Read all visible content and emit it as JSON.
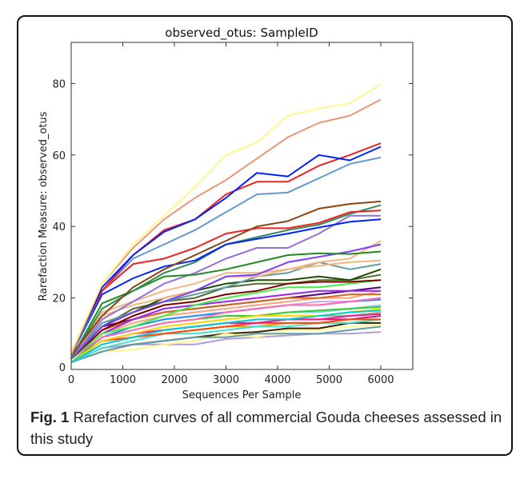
{
  "figure": {
    "label": "Fig. 1",
    "caption": "Rarefaction curves of all commercial Gouda cheeses assessed in this study"
  },
  "chart_data": {
    "type": "line",
    "title": "observed_otus: SampleID",
    "xlabel": "Sequences Per Sample",
    "ylabel": "Rarefaction Measure: observed_otus",
    "xlim": [
      0,
      6620
    ],
    "ylim": [
      0,
      91.5
    ],
    "xticks": [
      0,
      1000,
      2000,
      3000,
      4000,
      5000,
      6000
    ],
    "yticks": [
      0,
      20,
      40,
      60,
      80
    ],
    "grid": false,
    "legend": "none",
    "x": [
      0,
      600,
      1200,
      1800,
      2400,
      3000,
      3600,
      4200,
      4800,
      5400,
      6000
    ],
    "series": [
      {
        "color": "#fff68f",
        "values": [
          5,
          24,
          35,
          43,
          51,
          60,
          63.5,
          71,
          73,
          74.5,
          79.7
        ]
      },
      {
        "color": "#e9967a",
        "values": [
          4,
          24,
          34,
          42,
          48,
          53,
          59,
          65,
          69,
          71,
          75.5
        ]
      },
      {
        "color": "#0022ff",
        "values": [
          4,
          23,
          32,
          38.5,
          42,
          48,
          55,
          54,
          60,
          58.5,
          62.3
        ]
      },
      {
        "color": "#ee2222",
        "values": [
          5,
          22,
          32,
          39,
          42,
          49,
          52.5,
          52.5,
          57,
          60,
          63.3
        ]
      },
      {
        "color": "#6699cc",
        "values": [
          4,
          22,
          31,
          35,
          39,
          44,
          49,
          49.5,
          53.5,
          57.5,
          59.3
        ]
      },
      {
        "color": "#8b4513",
        "values": [
          4,
          15,
          23,
          28,
          32,
          36,
          40,
          41.5,
          45,
          46.3,
          47
        ]
      },
      {
        "color": "#ee2222",
        "values": [
          5,
          22,
          29.5,
          31,
          34,
          38,
          39.5,
          39.5,
          41,
          44,
          44.5
        ]
      },
      {
        "color": "#0022ff",
        "values": [
          4,
          21,
          25.5,
          28.8,
          30.5,
          35,
          36.5,
          38,
          39.7,
          41.3,
          42
        ]
      },
      {
        "color": "#2e8b57",
        "values": [
          3,
          17,
          22,
          27,
          30,
          35,
          37,
          39,
          40.5,
          43.5,
          46
        ]
      },
      {
        "color": "#228b22",
        "values": [
          3,
          18.5,
          22,
          26,
          26.5,
          28,
          30,
          32,
          32.5,
          32.3,
          33
        ]
      },
      {
        "color": "#9370db",
        "values": [
          3,
          14,
          19,
          24,
          27,
          31,
          34,
          34,
          38,
          43,
          43
        ]
      },
      {
        "color": "#7b3fff",
        "values": [
          3,
          12,
          16,
          19,
          22,
          26,
          26.5,
          30,
          31.5,
          33,
          35
        ]
      },
      {
        "color": "#f4b680",
        "values": [
          3,
          16,
          19,
          22,
          24,
          27,
          27,
          28,
          30,
          31,
          36
        ]
      },
      {
        "color": "#f4b680",
        "values": [
          3,
          15,
          18,
          20,
          22,
          26,
          26,
          28,
          29,
          30,
          30.5
        ]
      },
      {
        "color": "#5f9ea0",
        "values": [
          3,
          13,
          16,
          19,
          21,
          23,
          26,
          27,
          30,
          28,
          29.5
        ]
      },
      {
        "color": "#1e4d00",
        "values": [
          3,
          12,
          16,
          20,
          22,
          24,
          25,
          25,
          26,
          25,
          28
        ]
      },
      {
        "color": "#800000",
        "values": [
          3,
          11,
          15,
          18,
          19,
          21,
          22,
          24,
          24.5,
          24.5,
          25
        ]
      },
      {
        "color": "#44ee44",
        "values": [
          3,
          10,
          12,
          15,
          18,
          20,
          21.5,
          23,
          23,
          24,
          25
        ]
      },
      {
        "color": "#556b2f",
        "values": [
          3,
          12,
          17,
          19,
          20,
          23,
          24,
          24,
          25,
          25,
          26.5
        ]
      },
      {
        "color": "#ff69b4",
        "values": [
          3,
          9,
          11,
          13,
          14,
          16,
          17,
          18,
          18,
          19,
          20
        ]
      },
      {
        "color": "#00ced1",
        "values": [
          2,
          7,
          9,
          11,
          12,
          13,
          14,
          14,
          15,
          16,
          16.5
        ]
      },
      {
        "color": "#ffd700",
        "values": [
          2,
          8,
          10,
          12,
          13,
          14,
          15,
          15,
          15,
          16,
          17
        ]
      },
      {
        "color": "#a020f0",
        "values": [
          3,
          10,
          14,
          17,
          18,
          19,
          20,
          21,
          22,
          22,
          22
        ]
      },
      {
        "color": "#1e90ff",
        "values": [
          3,
          9,
          12,
          14,
          15,
          16,
          17,
          18,
          18,
          19,
          19.5
        ]
      },
      {
        "color": "#ff1493",
        "values": [
          2,
          8,
          10,
          11,
          12,
          13,
          13,
          14,
          14,
          15,
          15.5
        ]
      },
      {
        "color": "#32cd32",
        "values": [
          2,
          9,
          11,
          13,
          14,
          15,
          15,
          16,
          16.5,
          17,
          17.5
        ]
      },
      {
        "color": "#d2691e",
        "values": [
          3,
          11,
          14,
          16,
          17,
          18,
          19,
          20,
          20,
          21,
          21
        ]
      },
      {
        "color": "#87ceeb",
        "values": [
          2,
          8,
          10,
          12,
          13,
          14,
          15,
          16,
          16,
          17,
          18
        ]
      },
      {
        "color": "#dda0dd",
        "values": [
          2,
          9,
          12,
          14,
          15,
          16,
          17,
          18,
          19,
          19,
          20
        ]
      },
      {
        "color": "#ffa07a",
        "values": [
          3,
          10,
          13,
          15,
          16,
          17,
          18,
          19,
          20,
          20,
          22
        ]
      },
      {
        "color": "#8fbc8f",
        "values": [
          2,
          7,
          9,
          11,
          12,
          13,
          14,
          14,
          15,
          15,
          16
        ]
      },
      {
        "color": "#ff4500",
        "values": [
          2,
          8,
          9,
          10,
          11,
          12,
          13,
          13,
          13,
          14,
          14
        ]
      },
      {
        "color": "#4b0082",
        "values": [
          3,
          12,
          14,
          16,
          17,
          18,
          19,
          20,
          21,
          22,
          23
        ]
      },
      {
        "color": "#40e0d0",
        "values": [
          2,
          6,
          8,
          10,
          10,
          11,
          12,
          12,
          13,
          13,
          14
        ]
      },
      {
        "color": "#5f9ea0",
        "values": [
          2,
          5,
          7,
          8,
          9,
          9,
          10,
          10,
          10,
          11,
          12
        ]
      },
      {
        "color": "#fff68f",
        "values": [
          2,
          5,
          5.5,
          7,
          8,
          10,
          9,
          11,
          11,
          12,
          12.5
        ]
      },
      {
        "color": "#3b2000",
        "values": [
          2,
          5,
          7,
          8,
          9,
          10,
          10.5,
          11.5,
          11.5,
          13,
          13
        ]
      },
      {
        "color": "#b19cd9",
        "values": [
          2,
          6,
          7,
          7,
          7,
          8.5,
          9,
          9.5,
          10,
          10,
          10.5
        ]
      },
      {
        "color": "#c71585",
        "values": [
          2,
          8,
          10,
          11,
          12,
          13,
          13,
          14,
          14,
          14,
          15
        ]
      },
      {
        "color": "#daa520",
        "values": [
          2,
          7,
          9,
          10,
          11,
          12,
          12,
          13,
          13,
          13,
          14
        ]
      }
    ]
  }
}
